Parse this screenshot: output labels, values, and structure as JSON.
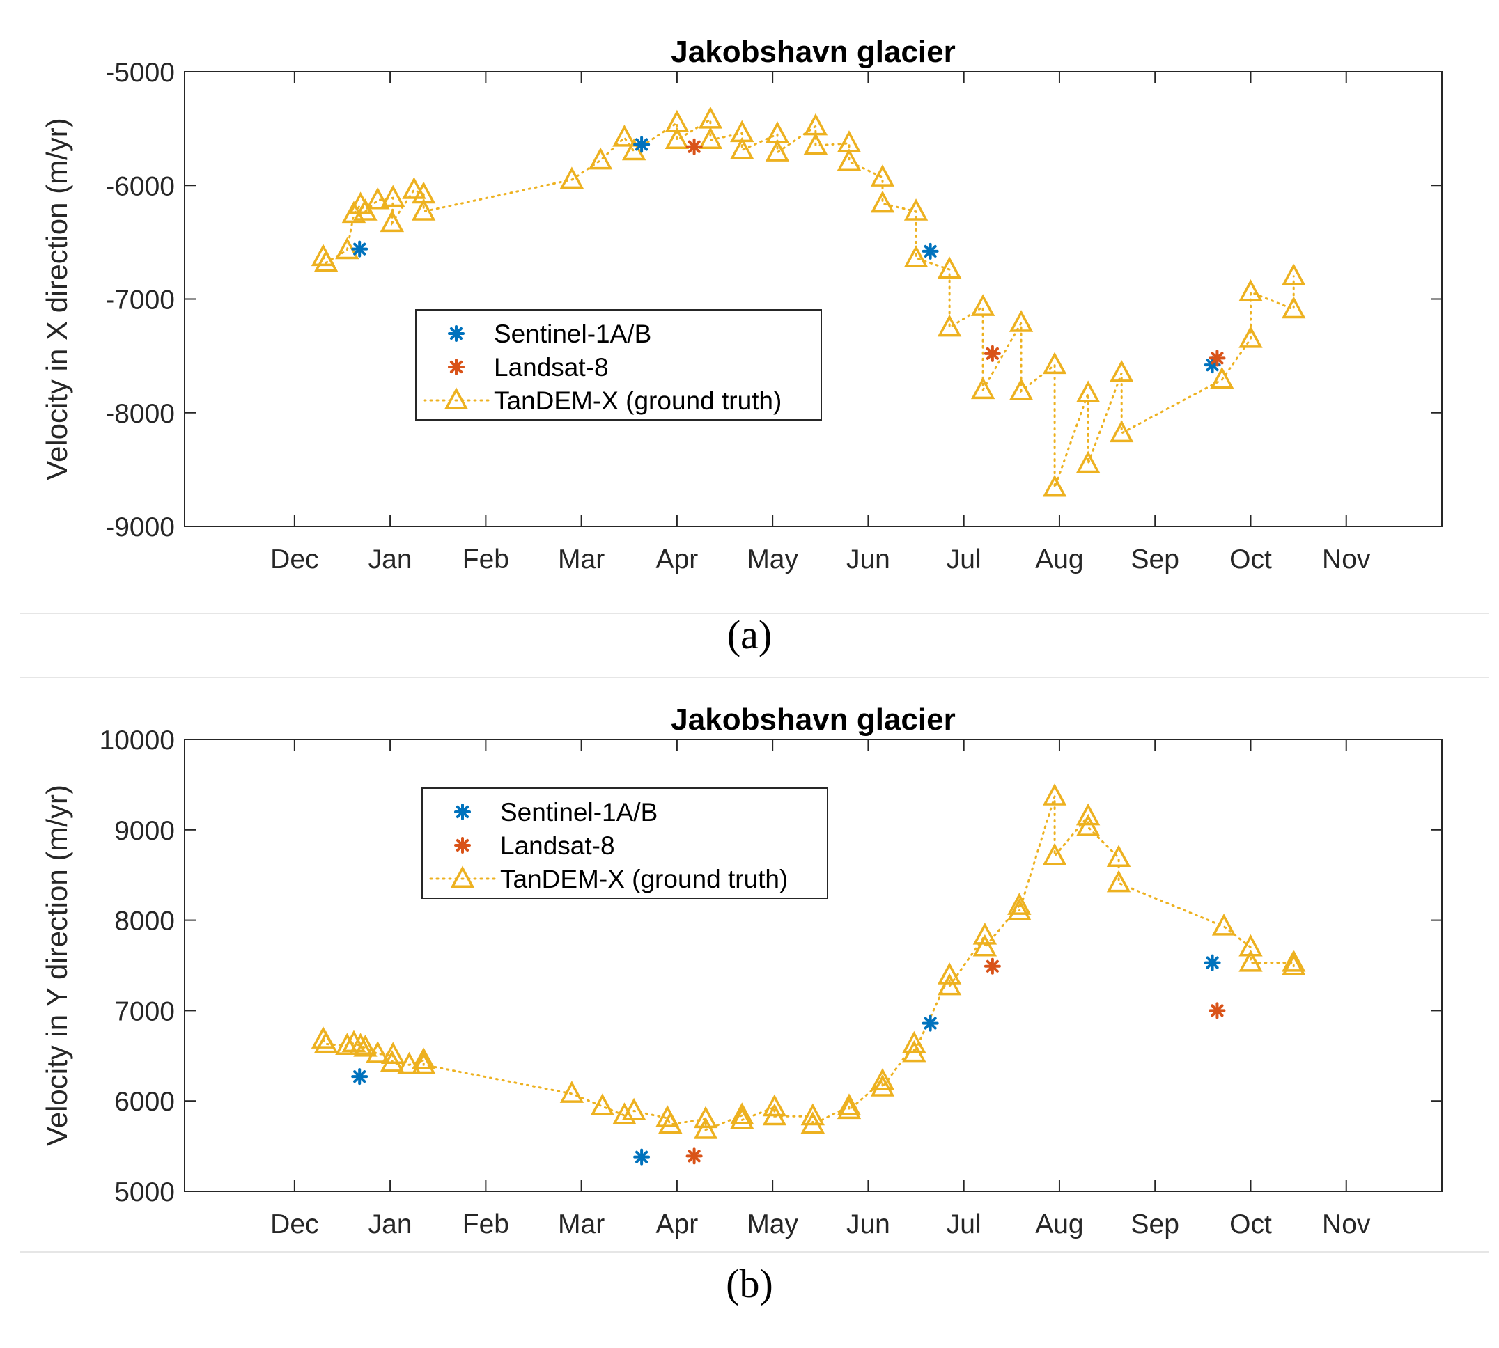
{
  "captions": {
    "a": "(a)",
    "b": "(b)"
  },
  "colors": {
    "sentinel": "#0072BD",
    "landsat": "#D95319",
    "tandem": "#EDB120",
    "axis": "#262626"
  },
  "icons": {
    "sentinel": "asterisk-marker",
    "landsat": "asterisk-marker",
    "tandem": "triangle-marker"
  },
  "chart_data": [
    {
      "type": "scatter",
      "title": "Jakobshavn glacier",
      "xlabel": "",
      "ylabel": "Velocity in X direction (m/yr)",
      "x_unit": "month",
      "xlim": [
        -0.15,
        13.0
      ],
      "xticks": [
        1,
        2,
        3,
        4,
        5,
        6,
        7,
        8,
        9,
        10,
        11,
        12
      ],
      "xticklabels": [
        "Dec",
        "Jan",
        "Feb",
        "Mar",
        "Apr",
        "May",
        "Jun",
        "Jul",
        "Aug",
        "Sep",
        "Oct",
        "Nov"
      ],
      "ylim": [
        -9000,
        -5000
      ],
      "yticks": [
        -9000,
        -8000,
        -7000,
        -6000,
        -5000
      ],
      "yticklabels": [
        "-9000",
        "-8000",
        "-7000",
        "-6000",
        "-5000"
      ],
      "legend": {
        "position": "center-left",
        "entries": [
          "Sentinel-1A/B",
          "Landsat-8",
          "TanDEM-X (ground truth)"
        ]
      },
      "series": [
        {
          "name": "TanDEM-X (ground truth)",
          "marker": "triangle",
          "line": "dotted",
          "points": [
            [
              1.3,
              -6630
            ],
            [
              1.33,
              -6680
            ],
            [
              1.55,
              -6570
            ],
            [
              1.62,
              -6250
            ],
            [
              1.69,
              -6170
            ],
            [
              1.74,
              -6230
            ],
            [
              1.87,
              -6130
            ],
            [
              2.03,
              -6110
            ],
            [
              2.02,
              -6330
            ],
            [
              2.25,
              -6040
            ],
            [
              2.35,
              -6080
            ],
            [
              2.35,
              -6230
            ],
            [
              3.9,
              -5950
            ],
            [
              4.2,
              -5780
            ],
            [
              4.45,
              -5580
            ],
            [
              4.55,
              -5700
            ],
            [
              5.0,
              -5450
            ],
            [
              5.0,
              -5600
            ],
            [
              5.35,
              -5420
            ],
            [
              5.35,
              -5600
            ],
            [
              5.68,
              -5540
            ],
            [
              5.68,
              -5690
            ],
            [
              6.05,
              -5550
            ],
            [
              6.05,
              -5710
            ],
            [
              6.45,
              -5480
            ],
            [
              6.45,
              -5650
            ],
            [
              6.8,
              -5630
            ],
            [
              6.8,
              -5790
            ],
            [
              7.15,
              -5930
            ],
            [
              7.15,
              -6160
            ],
            [
              7.5,
              -6230
            ],
            [
              7.5,
              -6640
            ],
            [
              7.85,
              -6740
            ],
            [
              7.85,
              -7250
            ],
            [
              8.2,
              -7070
            ],
            [
              8.2,
              -7800
            ],
            [
              8.6,
              -7210
            ],
            [
              8.6,
              -7810
            ],
            [
              8.95,
              -7580
            ],
            [
              8.95,
              -8660
            ],
            [
              9.3,
              -7830
            ],
            [
              9.3,
              -8450
            ],
            [
              9.65,
              -7650
            ],
            [
              9.65,
              -8180
            ],
            [
              10.7,
              -7710
            ],
            [
              11.0,
              -7350
            ],
            [
              11.0,
              -6940
            ],
            [
              11.45,
              -7090
            ],
            [
              11.45,
              -6800
            ]
          ]
        },
        {
          "name": "Sentinel-1A/B",
          "marker": "asterisk",
          "points": [
            [
              1.68,
              -6560
            ],
            [
              4.63,
              -5640
            ],
            [
              7.65,
              -6580
            ],
            [
              10.6,
              -7580
            ]
          ]
        },
        {
          "name": "Landsat-8",
          "marker": "asterisk",
          "points": [
            [
              5.18,
              -5660
            ],
            [
              8.3,
              -7480
            ],
            [
              10.65,
              -7520
            ]
          ]
        }
      ]
    },
    {
      "type": "scatter",
      "title": "Jakobshavn glacier",
      "xlabel": "",
      "ylabel": "Velocity in Y direction (m/yr)",
      "x_unit": "month",
      "xlim": [
        -0.15,
        13.0
      ],
      "xticks": [
        1,
        2,
        3,
        4,
        5,
        6,
        7,
        8,
        9,
        10,
        11,
        12
      ],
      "xticklabels": [
        "Dec",
        "Jan",
        "Feb",
        "Mar",
        "Apr",
        "May",
        "Jun",
        "Jul",
        "Aug",
        "Sep",
        "Oct",
        "Nov"
      ],
      "ylim": [
        5000,
        10000
      ],
      "yticks": [
        5000,
        6000,
        7000,
        8000,
        9000,
        10000
      ],
      "yticklabels": [
        "5000",
        "6000",
        "7000",
        "8000",
        "9000",
        "10000"
      ],
      "legend": {
        "position": "top-left",
        "entries": [
          "Sentinel-1A/B",
          "Landsat-8",
          "TanDEM-X (ground truth)"
        ]
      },
      "series": [
        {
          "name": "TanDEM-X (ground truth)",
          "marker": "triangle",
          "line": "dotted",
          "points": [
            [
              1.3,
              6680
            ],
            [
              1.33,
              6630
            ],
            [
              1.55,
              6610
            ],
            [
              1.62,
              6640
            ],
            [
              1.69,
              6610
            ],
            [
              1.74,
              6590
            ],
            [
              1.87,
              6520
            ],
            [
              2.03,
              6510
            ],
            [
              2.02,
              6420
            ],
            [
              2.2,
              6400
            ],
            [
              2.35,
              6450
            ],
            [
              2.35,
              6400
            ],
            [
              3.9,
              6080
            ],
            [
              4.22,
              5940
            ],
            [
              4.45,
              5840
            ],
            [
              4.55,
              5890
            ],
            [
              4.9,
              5810
            ],
            [
              4.93,
              5740
            ],
            [
              5.3,
              5800
            ],
            [
              5.3,
              5680
            ],
            [
              5.68,
              5840
            ],
            [
              5.68,
              5790
            ],
            [
              6.02,
              5930
            ],
            [
              6.02,
              5830
            ],
            [
              6.42,
              5830
            ],
            [
              6.42,
              5740
            ],
            [
              6.8,
              5940
            ],
            [
              6.8,
              5900
            ],
            [
              7.15,
              6220
            ],
            [
              7.15,
              6150
            ],
            [
              7.48,
              6630
            ],
            [
              7.48,
              6530
            ],
            [
              7.85,
              7390
            ],
            [
              7.85,
              7270
            ],
            [
              8.22,
              7830
            ],
            [
              8.22,
              7700
            ],
            [
              8.58,
              8160
            ],
            [
              8.58,
              8100
            ],
            [
              8.95,
              9370
            ],
            [
              8.95,
              8710
            ],
            [
              9.3,
              9150
            ],
            [
              9.3,
              9030
            ],
            [
              9.62,
              8690
            ],
            [
              9.62,
              8410
            ],
            [
              10.72,
              7930
            ],
            [
              11.0,
              7700
            ],
            [
              11.0,
              7530
            ],
            [
              11.45,
              7530
            ],
            [
              11.45,
              7490
            ]
          ]
        },
        {
          "name": "Sentinel-1A/B",
          "marker": "asterisk",
          "points": [
            [
              1.68,
              6270
            ],
            [
              4.63,
              5380
            ],
            [
              7.65,
              6860
            ],
            [
              10.6,
              7530
            ]
          ]
        },
        {
          "name": "Landsat-8",
          "marker": "asterisk",
          "points": [
            [
              5.18,
              5390
            ],
            [
              8.3,
              7490
            ],
            [
              10.65,
              7000
            ]
          ]
        }
      ]
    }
  ]
}
